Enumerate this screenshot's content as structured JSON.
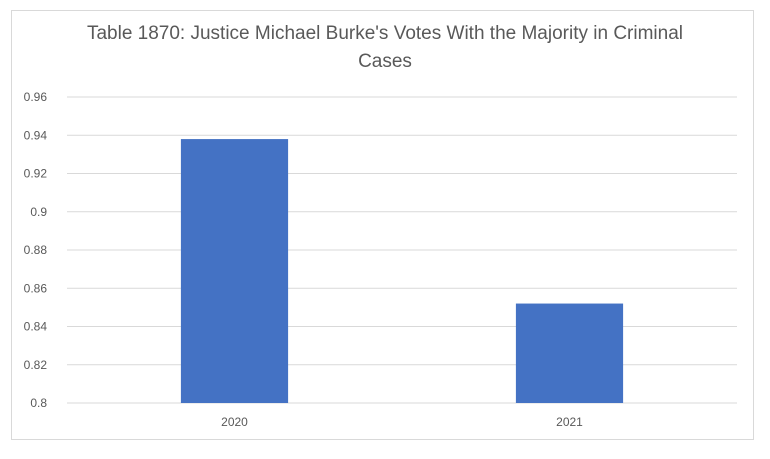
{
  "chart_data": {
    "type": "bar",
    "title": "Table 1870: Justice Michael Burke's Votes With the Majority in Criminal Cases",
    "categories": [
      "2020",
      "2021"
    ],
    "values": [
      0.938,
      0.852
    ],
    "xlabel": "",
    "ylabel": "",
    "ylim": [
      0.8,
      0.96
    ],
    "yticks": [
      "0.8",
      "0.82",
      "0.84",
      "0.86",
      "0.88",
      "0.9",
      "0.92",
      "0.94",
      "0.96"
    ],
    "grid": true,
    "legend": "none",
    "colors": {
      "bar": "#4472c4",
      "grid": "#d9d9d9",
      "text": "#595959"
    }
  }
}
